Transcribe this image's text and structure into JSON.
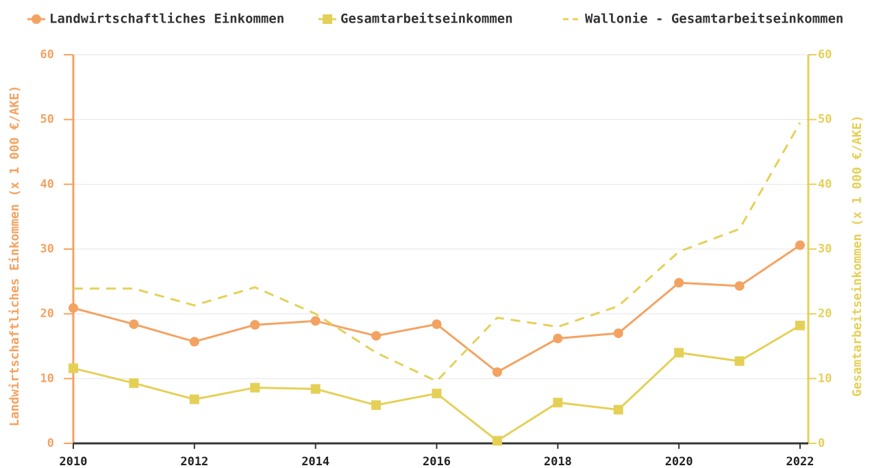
{
  "chart_data": {
    "type": "line",
    "ylabel": "Landwirtschaftliches Einkommen (x 1 000 €/AKE)",
    "y2label": "Gesamtarbeitseinkommen (x 1 000 €/AKE)",
    "x": [
      2010,
      2011,
      2012,
      2013,
      2014,
      2015,
      2016,
      2017,
      2018,
      2019,
      2020,
      2021,
      2022
    ],
    "xlim": [
      2010,
      2022
    ],
    "xticks": [
      2010,
      2012,
      2014,
      2016,
      2018,
      2020,
      2022
    ],
    "ylim": [
      0,
      60
    ],
    "yticks": [
      0,
      10,
      20,
      30,
      40,
      50,
      60
    ],
    "y2lim": [
      0,
      60
    ],
    "y2ticks": [
      0,
      10,
      20,
      30,
      40,
      50,
      60
    ],
    "grid": true,
    "legend": "top",
    "series": [
      {
        "name": "Landwirtschaftliches Einkommen",
        "color": "#f4a261",
        "marker": "circle",
        "line_style": "solid",
        "values": [
          20.9,
          18.4,
          15.7,
          18.3,
          18.9,
          16.6,
          18.4,
          11.0,
          16.2,
          17.0,
          24.8,
          24.3,
          30.6
        ]
      },
      {
        "name": "Gesamtarbeitseinkommen",
        "color": "#e5d057",
        "marker": "square",
        "line_style": "solid",
        "axis": "y2",
        "values": [
          11.6,
          9.3,
          6.8,
          8.6,
          8.4,
          5.9,
          7.7,
          0.4,
          6.3,
          5.2,
          14.0,
          12.7,
          18.2
        ]
      },
      {
        "name": "Wallonie - Gesamtarbeitseinkommen",
        "color": "#e5d057",
        "marker": "none",
        "line_style": "dashed",
        "axis": "y2",
        "values": [
          23.9,
          23.9,
          21.3,
          24.1,
          20.0,
          14.0,
          9.6,
          19.4,
          18.0,
          21.2,
          29.6,
          33.1,
          49.5
        ]
      }
    ]
  }
}
